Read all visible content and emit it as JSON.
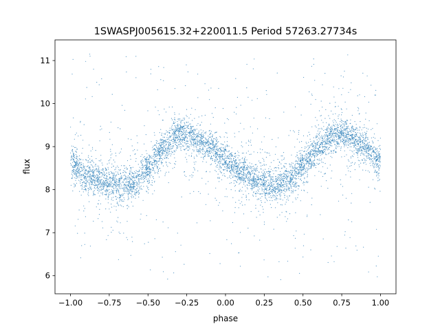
{
  "chart_data": {
    "type": "scatter",
    "title": "1SWASPJ005615.32+220011.5 Period 57263.27734s",
    "xlabel": "phase",
    "ylabel": "flux",
    "xlim": [
      -1.1,
      1.1
    ],
    "ylim": [
      5.58,
      11.48
    ],
    "xticks": [
      -1.0,
      -0.75,
      -0.5,
      -0.25,
      0.0,
      0.25,
      0.5,
      0.75,
      1.0
    ],
    "xtick_labels": [
      "−1.00",
      "−0.75",
      "−0.50",
      "−0.25",
      "0.00",
      "0.25",
      "0.50",
      "0.75",
      "1.00"
    ],
    "yticks": [
      6,
      7,
      8,
      9,
      10,
      11
    ],
    "ytick_labels": [
      "6",
      "7",
      "8",
      "9",
      "10",
      "11"
    ],
    "grid": false,
    "marker_color": "#1f77b4",
    "binned_median": {
      "x": [
        -1.0,
        -0.9,
        -0.8,
        -0.7,
        -0.6,
        -0.5,
        -0.4,
        -0.3,
        -0.2,
        -0.1,
        0.0,
        0.1,
        0.2,
        0.3,
        0.4,
        0.5,
        0.6,
        0.7,
        0.8,
        0.9,
        1.0
      ],
      "y": [
        8.6,
        8.35,
        8.2,
        8.1,
        8.15,
        8.5,
        8.95,
        9.3,
        9.2,
        9.0,
        8.7,
        8.4,
        8.2,
        8.1,
        8.2,
        8.55,
        8.95,
        9.3,
        9.25,
        9.0,
        8.65
      ]
    },
    "core_scatter": 0.3,
    "outlier_range": [
      5.9,
      11.2
    ]
  }
}
